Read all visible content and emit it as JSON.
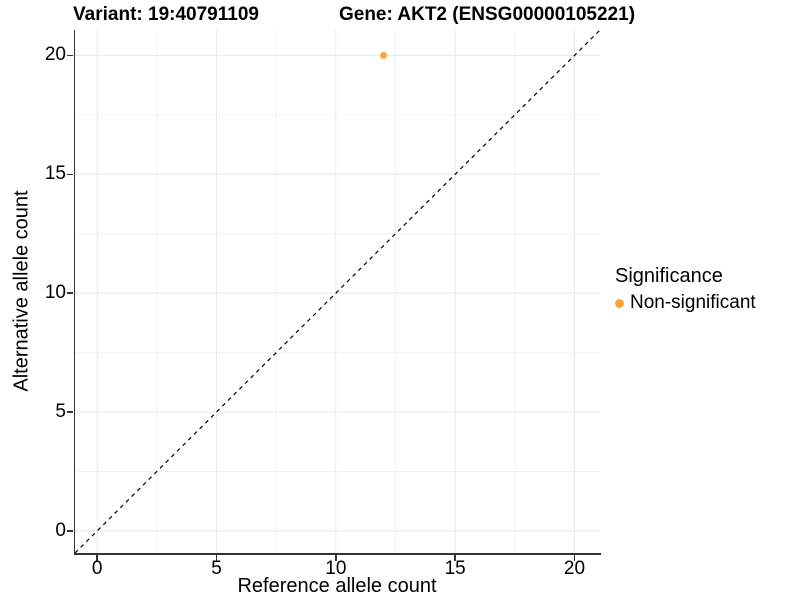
{
  "chart_data": {
    "type": "scatter",
    "title_left": "Variant: 19:40791109",
    "title_right": "Gene: AKT2 (ENSG00000105221)",
    "xlabel": "Reference allele count",
    "ylabel": "Alternative allele count",
    "xlim": [
      -0.93,
      21.07
    ],
    "ylim": [
      -0.93,
      21.07
    ],
    "x_ticks": [
      0,
      5,
      10,
      15,
      20
    ],
    "y_ticks": [
      0,
      5,
      10,
      15,
      20
    ],
    "x_minor_ticks": [
      2.5,
      7.5,
      12.5,
      17.5
    ],
    "y_minor_ticks": [
      2.5,
      7.5,
      12.5,
      17.5
    ],
    "grid": true,
    "identity_line": {
      "style": "dashed",
      "slope": 1,
      "intercept": 0,
      "color": "#000000"
    },
    "series": [
      {
        "name": "Non-significant",
        "color": "#FAA43A",
        "points": [
          {
            "x": 12,
            "y": 20
          }
        ]
      }
    ],
    "legend": {
      "title": "Significance",
      "position": "right",
      "items": [
        {
          "label": "Non-significant",
          "color": "#FAA43A"
        }
      ]
    },
    "style": {
      "background": "#ffffff",
      "axis_line_color": "#333333",
      "grid_major_color": "#e8e8e8",
      "grid_minor_color": "#f3f3f3",
      "text_color": "#000000"
    }
  }
}
